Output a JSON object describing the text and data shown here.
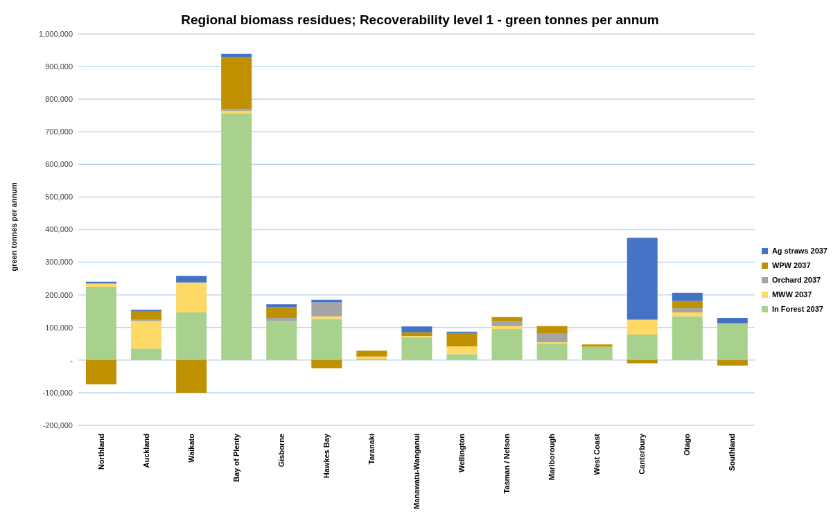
{
  "chart_data": {
    "type": "bar",
    "title": "Regional biomass residues; Recoverability level 1 - green tonnes per annum",
    "ylabel": "green tonnes per annum",
    "stacked": true,
    "categories": [
      "Northland",
      "Auckland",
      "Waikato",
      "Bay of Plenty",
      "Gisborne",
      "Hawkes Bay",
      "Taranaki",
      "Manawatu-Wanganui",
      "Wellington",
      "Tasman / Nelson",
      "Marlborough",
      "West Coast",
      "Canterbury",
      "Otago",
      "Southland"
    ],
    "series": [
      {
        "name": "In Forest 2037",
        "color": "#a9d18e",
        "values": [
          225000,
          35000,
          146000,
          756000,
          120000,
          126000,
          4000,
          71000,
          18000,
          95000,
          51000,
          41000,
          78000,
          134000,
          110000
        ]
      },
      {
        "name": "MWW 2037",
        "color": "#ffd966",
        "values": [
          10000,
          85000,
          92000,
          8000,
          0,
          8000,
          7000,
          3000,
          24000,
          9000,
          4000,
          0,
          46000,
          12000,
          2000
        ]
      },
      {
        "name": "Orchard 2037",
        "color": "#a5a5a5",
        "values": [
          0,
          5000,
          0,
          6000,
          9000,
          43000,
          0,
          0,
          0,
          15000,
          26000,
          0,
          0,
          13000,
          0
        ]
      },
      {
        "name": "WPW 2037",
        "color": "#bf9000",
        "values": [
          -74000,
          24000,
          -100000,
          160000,
          33000,
          -25000,
          18000,
          11000,
          41000,
          13000,
          23000,
          7000,
          -10000,
          22000,
          -17000
        ]
      },
      {
        "name": "Ag straws 2037",
        "color": "#4472c4",
        "values": [
          5000,
          5000,
          20000,
          9000,
          9000,
          8000,
          0,
          18000,
          4000,
          0,
          0,
          0,
          251000,
          25000,
          17000
        ]
      }
    ],
    "ylim": [
      -200000,
      1000000
    ],
    "yticks": [
      {
        "value": -200000,
        "label": "-200,000"
      },
      {
        "value": -100000,
        "label": "-100,000"
      },
      {
        "value": 0,
        "label": "-"
      },
      {
        "value": 100000,
        "label": "100,000"
      },
      {
        "value": 200000,
        "label": "200,000"
      },
      {
        "value": 300000,
        "label": "300,000"
      },
      {
        "value": 400000,
        "label": "400,000"
      },
      {
        "value": 500000,
        "label": "500,000"
      },
      {
        "value": 600000,
        "label": "600,000"
      },
      {
        "value": 700000,
        "label": "700,000"
      },
      {
        "value": 800000,
        "label": "800,000"
      },
      {
        "value": 900000,
        "label": "900,000"
      },
      {
        "value": 1000000,
        "label": "1,000,000"
      }
    ],
    "grid": "y",
    "legend": "right"
  }
}
